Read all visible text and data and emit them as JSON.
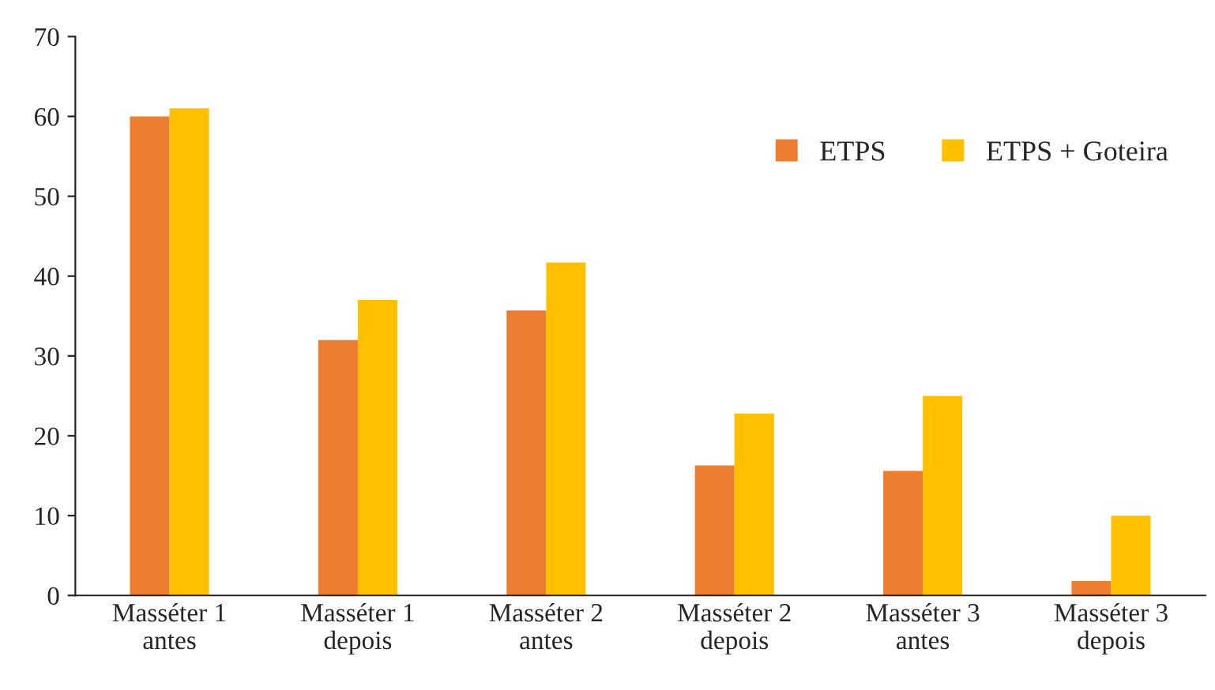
{
  "chart_data": {
    "type": "bar",
    "categories": [
      "Masséter 1\nantes",
      "Masséter 1\ndepois",
      "Masséter 2\nantes",
      "Masséter 2\ndepois",
      "Masséter 3\nantes",
      "Masséter 3\ndepois"
    ],
    "series": [
      {
        "name": "ETPS",
        "color": "#ed7d31",
        "values": [
          60,
          32,
          35.7,
          16.3,
          15.6,
          1.8
        ]
      },
      {
        "name": "ETPS + Goteira",
        "color": "#ffc000",
        "values": [
          61,
          37,
          41.7,
          22.8,
          25,
          10
        ]
      }
    ],
    "ylim": [
      0,
      70
    ],
    "yticks": [
      0,
      10,
      20,
      30,
      40,
      50,
      60,
      70
    ],
    "grid": false,
    "legend": "top right"
  }
}
